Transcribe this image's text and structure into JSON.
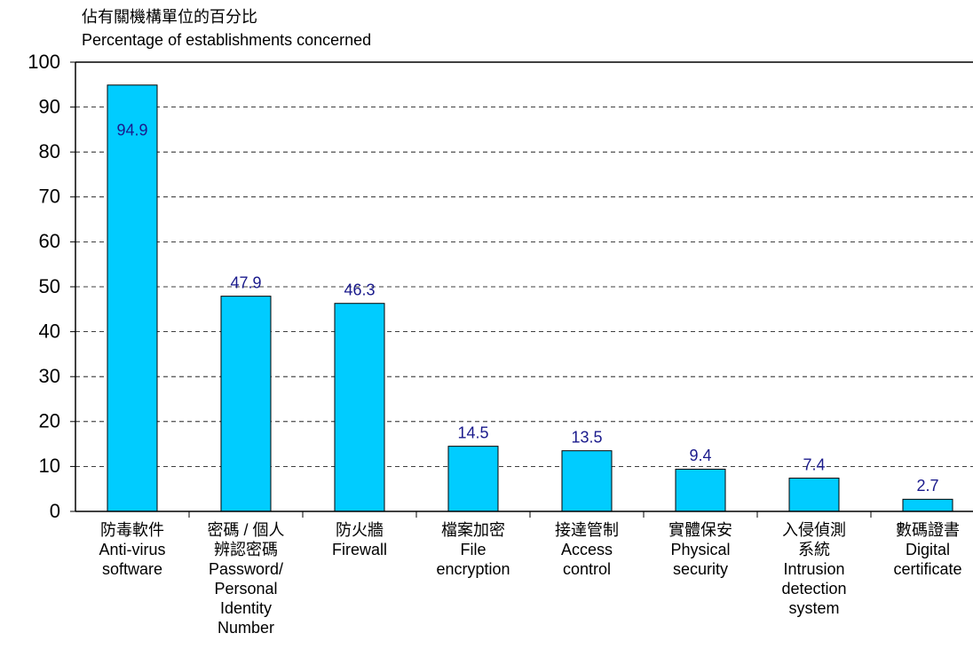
{
  "chart_data": {
    "type": "bar",
    "ylabel": "佔有關機構單位的百分比\nPercentage of establishments concerned",
    "categories": [
      "防毒軟件\nAnti-virus\nsoftware",
      "密碼 / 個人\n辨認密碼\nPassword/\nPersonal\nIdentity\nNumber",
      "防火牆\nFirewall",
      "檔案加密\nFile\nencryption",
      "接達管制\nAccess\ncontrol",
      "實體保安\nPhysical\nsecurity",
      "入侵偵測\n系統\nIntrusion\ndetection\nsystem",
      "數碼證書\nDigital\ncertificate"
    ],
    "values": [
      94.9,
      47.9,
      46.3,
      14.5,
      13.5,
      9.4,
      7.4,
      2.7
    ],
    "color": "#00ccff",
    "label_color": "#1a1a8c",
    "ylim": [
      0,
      100
    ],
    "yticks": [
      0,
      10,
      20,
      30,
      40,
      50,
      60,
      70,
      80,
      90,
      100
    ],
    "grid": true
  }
}
